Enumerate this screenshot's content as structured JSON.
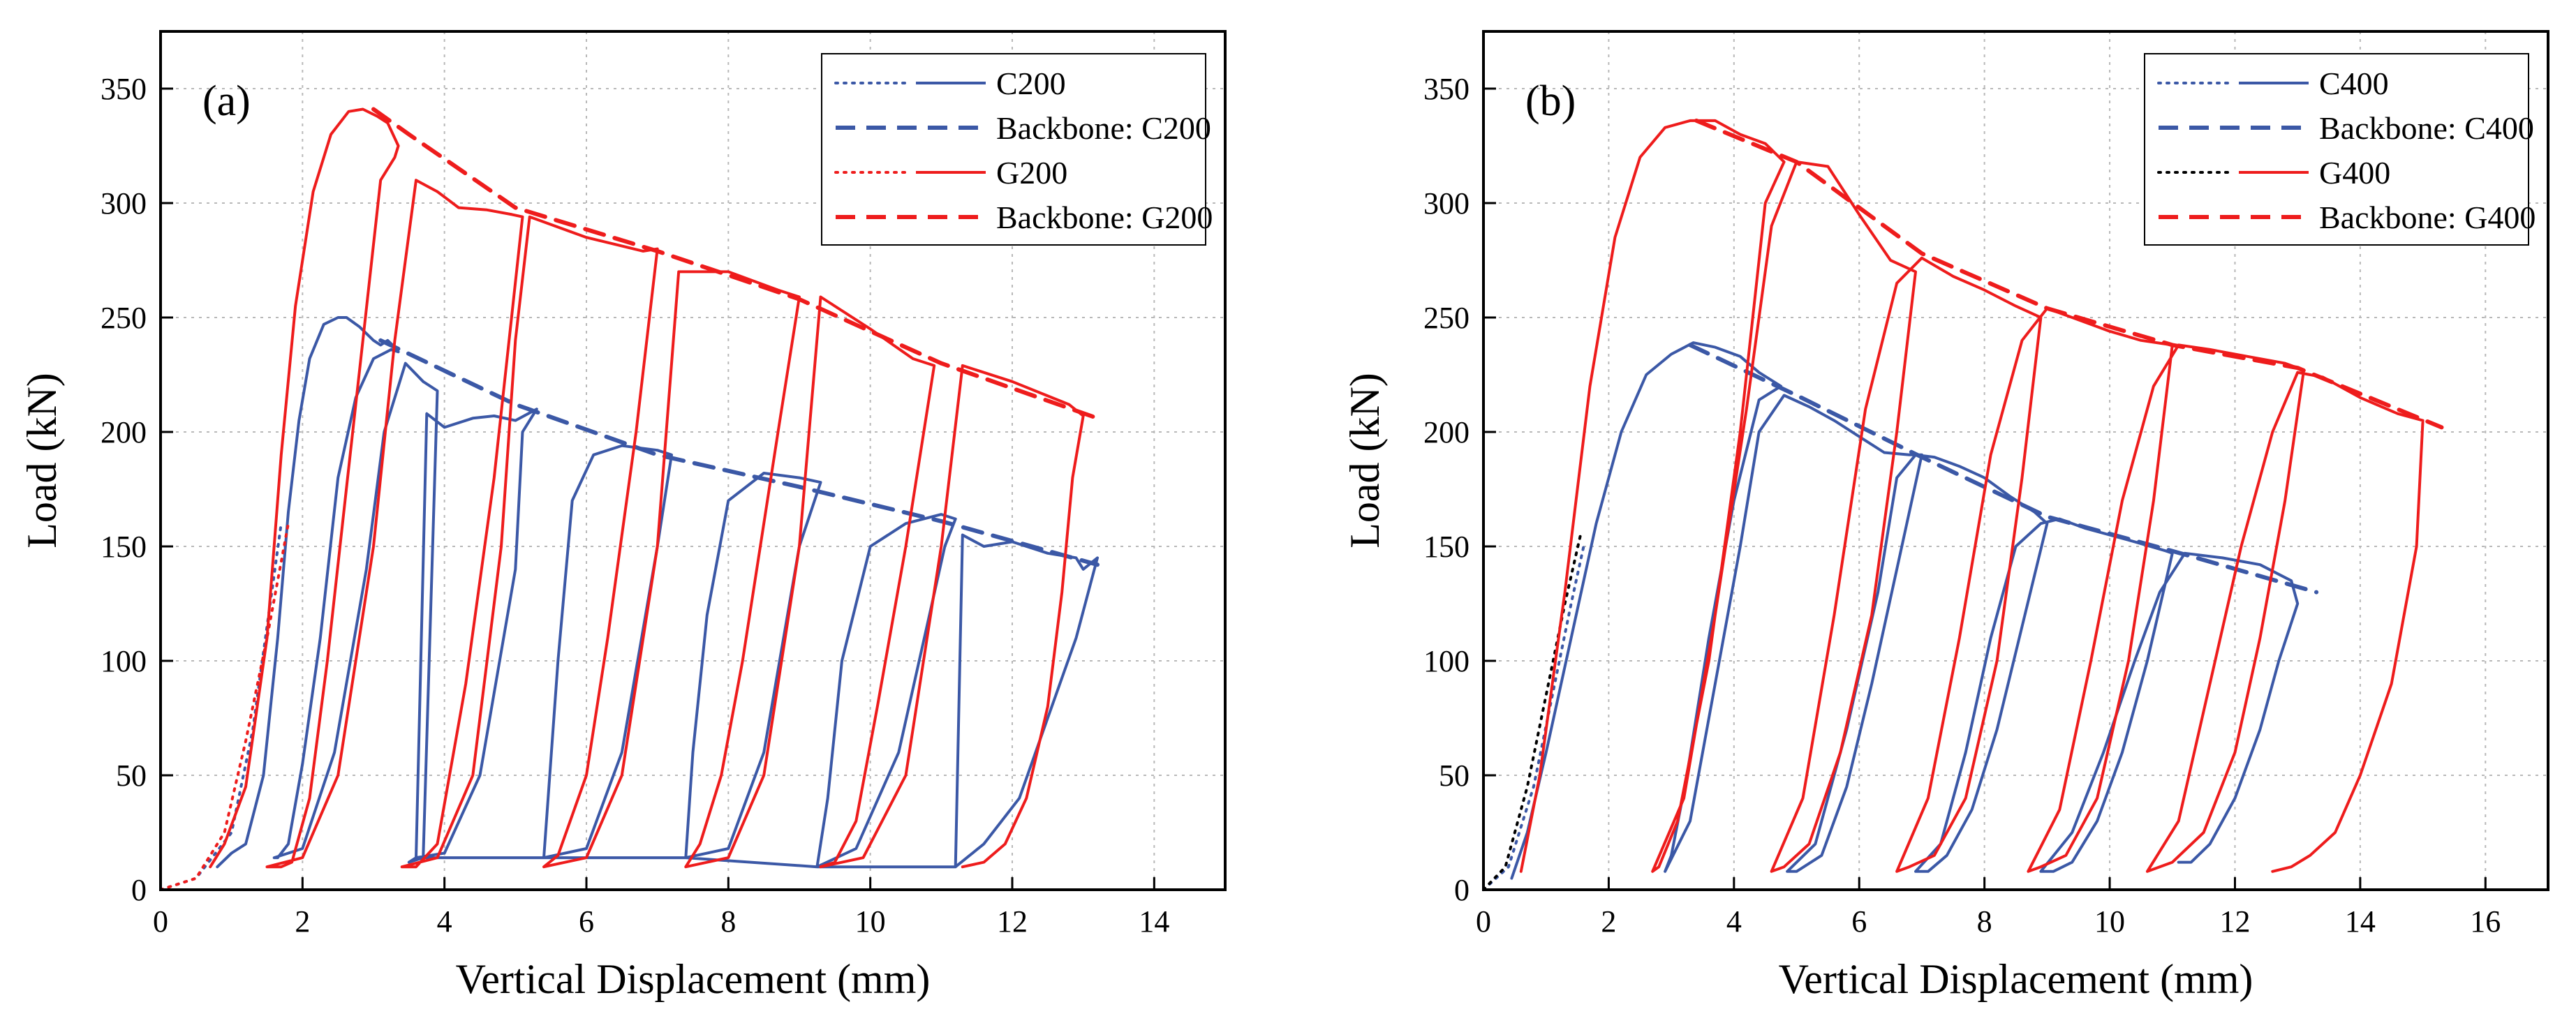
{
  "colors": {
    "blue": "#3b58a6",
    "red": "#ee1c1c",
    "black": "#000000",
    "grid": "#b8b8b8"
  },
  "chart_data": [
    {
      "type": "line",
      "panel_label": "(a)",
      "xlabel": "Vertical Displacement (mm)",
      "ylabel": "Load (kN)",
      "xlim": [
        0,
        15
      ],
      "ylim": [
        0,
        375
      ],
      "xticks": [
        0,
        2,
        4,
        6,
        8,
        10,
        12,
        14
      ],
      "yticks": [
        0,
        50,
        100,
        150,
        200,
        250,
        300,
        350
      ],
      "grid": true,
      "legend_position": "top-right",
      "legend": [
        {
          "label": "C200",
          "color": "#3b58a6",
          "sample": "dotted+solid"
        },
        {
          "label": "Backbone: C200",
          "color": "#3b58a6",
          "sample": "dashed"
        },
        {
          "label": "G200",
          "color": "#ee1c1c",
          "sample": "dotted+solid"
        },
        {
          "label": "Backbone: G200",
          "color": "#ee1c1c",
          "sample": "dashed"
        }
      ],
      "series": [
        {
          "name": "C200 monotonic",
          "color": "#3b58a6",
          "dash": "dotted",
          "x": [
            0.0,
            0.5,
            1.0,
            1.3,
            1.5,
            1.7
          ],
          "y": [
            0,
            5,
            25,
            70,
            115,
            160
          ]
        },
        {
          "name": "C200 cyclic",
          "color": "#3b58a6",
          "dash": "solid",
          "x": [
            0.8,
            1.0,
            1.2,
            1.45,
            1.65,
            1.8,
            1.95,
            2.1,
            2.3,
            2.5,
            2.62,
            2.8,
            3.0,
            3.1,
            3.2,
            3.3,
            3.35,
            3.25,
            3.0,
            2.75,
            2.5,
            2.25,
            2.0,
            1.8,
            1.65,
            1.6,
            2.0,
            2.45,
            2.9,
            3.15,
            3.45,
            3.7,
            3.9,
            3.7,
            3.5,
            3.6,
            4.0,
            4.5,
            5.0,
            5.1,
            5.3,
            5.0,
            4.7,
            4.4,
            4.0,
            3.75,
            3.6,
            5.4,
            6.0,
            6.5,
            7.0,
            7.2,
            7.0,
            6.5,
            6.1,
            5.8,
            5.6,
            5.4,
            7.4,
            8.0,
            8.5,
            9.0,
            9.3,
            9.0,
            8.5,
            8.0,
            7.7,
            7.5,
            7.4,
            9.25,
            9.8,
            10.4,
            11.05,
            11.2,
            11.0,
            10.5,
            10.0,
            9.6,
            9.4,
            9.25,
            11.2,
            11.6,
            12.1,
            12.5,
            12.9,
            13.2,
            13.0,
            12.9,
            12.5,
            12.0,
            11.6,
            11.3,
            11.2
          ],
          "y": [
            10,
            16,
            20,
            50,
            110,
            165,
            205,
            232,
            247,
            250,
            250,
            246,
            240,
            238,
            240,
            237,
            235,
            236,
            232,
            215,
            180,
            110,
            55,
            20,
            14,
            14,
            18,
            60,
            140,
            200,
            230,
            222,
            218,
            14,
            12,
            14,
            16,
            50,
            140,
            200,
            210,
            205,
            207,
            206,
            202,
            208,
            14,
            14,
            18,
            60,
            150,
            190,
            192,
            194,
            190,
            170,
            100,
            14,
            14,
            18,
            60,
            150,
            178,
            180,
            182,
            170,
            120,
            60,
            14,
            10,
            18,
            60,
            150,
            162,
            164,
            160,
            150,
            100,
            40,
            10,
            10,
            20,
            40,
            75,
            110,
            145,
            140,
            145,
            147,
            152,
            150,
            155,
            10
          ]
        },
        {
          "name": "Backbone: C200",
          "color": "#3b58a6",
          "dash": "dashed",
          "x": [
            3.1,
            5.0,
            7.0,
            9.0,
            11.0,
            13.2
          ],
          "y": [
            240,
            212,
            190,
            176,
            161,
            142
          ]
        },
        {
          "name": "G200 monotonic",
          "color": "#ee1c1c",
          "dash": "dotted",
          "x": [
            0.0,
            0.5,
            0.9,
            1.2,
            1.5,
            1.8
          ],
          "y": [
            0,
            5,
            25,
            65,
            110,
            160
          ]
        },
        {
          "name": "G200 cyclic",
          "color": "#ee1c1c",
          "dash": "solid",
          "x": [
            0.7,
            0.9,
            1.2,
            1.5,
            1.7,
            1.9,
            2.15,
            2.4,
            2.65,
            2.85,
            3.05,
            3.2,
            3.35,
            3.3,
            3.1,
            2.85,
            2.6,
            2.35,
            2.1,
            1.85,
            1.7,
            1.55,
            1.5,
            2.0,
            2.5,
            3.0,
            3.3,
            3.6,
            3.9,
            4.2,
            4.6,
            4.95,
            5.1,
            4.7,
            4.3,
            3.9,
            3.6,
            3.4,
            3.9,
            4.4,
            4.8,
            5.0,
            5.2,
            6.0,
            6.8,
            7.0,
            6.7,
            6.3,
            6.0,
            5.6,
            5.4,
            5.4,
            6.0,
            6.5,
            7.0,
            7.3,
            8.0,
            8.7,
            9.0,
            8.7,
            8.2,
            7.9,
            7.6,
            7.4,
            7.4,
            8.0,
            8.5,
            9.0,
            9.3,
            10.0,
            10.6,
            10.9,
            10.5,
            10.1,
            9.8,
            9.5,
            9.3,
            9.3,
            9.9,
            10.5,
            11.0,
            11.3,
            12.0,
            12.8,
            13.0,
            12.85,
            12.7,
            12.5,
            12.2,
            11.9,
            11.6,
            11.3
          ],
          "y": [
            10,
            20,
            45,
            110,
            190,
            255,
            305,
            330,
            340,
            341,
            338,
            335,
            325,
            320,
            310,
            240,
            170,
            100,
            40,
            12,
            10,
            10,
            10,
            14,
            50,
            150,
            240,
            310,
            305,
            298,
            297,
            295,
            294,
            180,
            90,
            20,
            10,
            10,
            14,
            50,
            150,
            240,
            294,
            285,
            279,
            280,
            200,
            110,
            50,
            15,
            10,
            10,
            14,
            50,
            150,
            270,
            270,
            262,
            259,
            200,
            100,
            50,
            20,
            10,
            10,
            14,
            50,
            150,
            259,
            245,
            232,
            229,
            150,
            80,
            30,
            12,
            10,
            10,
            14,
            50,
            150,
            229,
            222,
            212,
            207,
            180,
            130,
            80,
            40,
            20,
            12,
            10
          ]
        },
        {
          "name": "Backbone: G200",
          "color": "#ee1c1c",
          "dash": "dashed",
          "x": [
            3.0,
            3.5,
            5.0,
            7.0,
            9.0,
            11.0,
            13.2
          ],
          "y": [
            341,
            330,
            298,
            279,
            258,
            230,
            206
          ]
        }
      ]
    },
    {
      "type": "line",
      "panel_label": "(b)",
      "xlabel": "Vertical Displacement (mm)",
      "ylabel": "Load (kN)",
      "xlim": [
        0,
        17
      ],
      "ylim": [
        0,
        375
      ],
      "xticks": [
        0,
        2,
        4,
        6,
        8,
        10,
        12,
        14,
        16
      ],
      "yticks": [
        0,
        50,
        100,
        150,
        200,
        250,
        300,
        350
      ],
      "grid": true,
      "legend_position": "top-right",
      "legend": [
        {
          "label": "C400",
          "color": "#3b58a6",
          "sample": "dotted+solid"
        },
        {
          "label": "Backbone: C400",
          "color": "#3b58a6",
          "sample": "dashed"
        },
        {
          "label": "G400",
          "color": "#000000",
          "sample": "dotted+solid",
          "solid_color": "#ee1c1c"
        },
        {
          "label": "Backbone: G400",
          "color": "#ee1c1c",
          "sample": "dashed"
        }
      ],
      "series": [
        {
          "name": "C400 monotonic",
          "color": "#3b58a6",
          "dash": "dotted",
          "x": [
            0.0,
            0.4,
            0.8,
            1.1,
            1.4,
            1.6
          ],
          "y": [
            0,
            10,
            45,
            85,
            125,
            150
          ]
        },
        {
          "name": "C400 cyclic",
          "color": "#3b58a6",
          "dash": "solid",
          "x": [
            0.45,
            0.7,
            1.0,
            1.4,
            1.8,
            2.2,
            2.6,
            3.0,
            3.35,
            3.7,
            4.1,
            4.4,
            4.75,
            4.4,
            4.0,
            3.6,
            3.25,
            3.0,
            2.9,
            2.9,
            3.3,
            3.7,
            4.1,
            4.4,
            4.8,
            5.2,
            5.6,
            6.0,
            6.4,
            6.8,
            7.0,
            6.6,
            6.2,
            5.8,
            5.4,
            5.0,
            4.85,
            4.85,
            5.3,
            5.8,
            6.3,
            6.6,
            6.9,
            7.2,
            7.6,
            8.0,
            8.4,
            8.8,
            9.0,
            8.6,
            8.2,
            7.8,
            7.4,
            7.1,
            6.9,
            6.9,
            7.3,
            7.7,
            8.1,
            8.5,
            8.9,
            9.2,
            9.6,
            10.0,
            10.4,
            10.9,
            11.0,
            10.6,
            10.2,
            9.8,
            9.4,
            9.1,
            8.9,
            8.9,
            9.4,
            9.9,
            10.4,
            10.8,
            11.2,
            11.8,
            12.4,
            12.9,
            13.0,
            12.7,
            12.4,
            12.0,
            11.6,
            11.3,
            11.1
          ],
          "y": [
            5,
            25,
            60,
            110,
            160,
            200,
            225,
            234,
            239,
            237,
            233,
            226,
            220,
            214,
            170,
            110,
            50,
            15,
            8,
            8,
            30,
            90,
            150,
            200,
            216,
            211,
            205,
            198,
            191,
            190,
            190,
            140,
            90,
            45,
            15,
            8,
            8,
            8,
            20,
            70,
            130,
            180,
            190,
            189,
            185,
            180,
            172,
            165,
            160,
            115,
            70,
            35,
            15,
            8,
            8,
            8,
            20,
            60,
            110,
            150,
            160,
            162,
            158,
            155,
            152,
            148,
            147,
            100,
            60,
            30,
            12,
            8,
            8,
            8,
            25,
            60,
            100,
            130,
            147,
            145,
            142,
            135,
            125,
            100,
            70,
            40,
            20,
            12,
            12
          ]
        },
        {
          "name": "Backbone: C400",
          "color": "#3b58a6",
          "dash": "dashed",
          "x": [
            3.3,
            5.0,
            7.0,
            9.0,
            11.0,
            13.3
          ],
          "y": [
            238,
            216,
            189,
            163,
            148,
            130
          ]
        },
        {
          "name": "G400 monotonic",
          "color": "#000000",
          "dash": "dotted",
          "x": [
            0.0,
            0.35,
            0.7,
            1.0,
            1.3,
            1.55
          ],
          "y": [
            0,
            10,
            45,
            85,
            125,
            155
          ]
        },
        {
          "name": "G400 cyclic",
          "color": "#ee1c1c",
          "dash": "solid",
          "x": [
            0.6,
            0.9,
            1.3,
            1.7,
            2.1,
            2.5,
            2.9,
            3.3,
            3.7,
            4.1,
            4.5,
            4.8,
            4.5,
            4.1,
            3.6,
            3.1,
            2.8,
            2.7,
            2.7,
            3.2,
            3.7,
            4.2,
            4.6,
            5.0,
            5.5,
            6.0,
            6.5,
            6.9,
            6.6,
            6.2,
            5.7,
            5.2,
            4.8,
            4.6,
            4.6,
            5.1,
            5.6,
            6.1,
            6.6,
            7.0,
            7.5,
            8.0,
            8.5,
            8.9,
            8.6,
            8.2,
            7.7,
            7.2,
            6.8,
            6.6,
            6.6,
            7.1,
            7.6,
            8.1,
            8.6,
            9.0,
            9.5,
            10.0,
            10.5,
            11.0,
            10.7,
            10.3,
            9.8,
            9.3,
            8.9,
            8.7,
            8.7,
            9.2,
            9.7,
            10.2,
            10.7,
            11.1,
            11.6,
            12.2,
            12.8,
            13.1,
            12.8,
            12.4,
            12.0,
            11.5,
            11.0,
            10.6,
            10.6,
            11.1,
            11.6,
            12.1,
            12.6,
            13.0,
            13.4,
            14.0,
            14.6,
            15.0,
            14.9,
            14.5,
            14.0,
            13.6,
            13.2,
            12.9,
            12.6
          ],
          "y": [
            8,
            50,
            130,
            220,
            285,
            320,
            333,
            336,
            336,
            330,
            326,
            318,
            300,
            200,
            100,
            30,
            10,
            8,
            8,
            40,
            120,
            210,
            290,
            318,
            316,
            295,
            275,
            270,
            200,
            120,
            60,
            20,
            10,
            8,
            8,
            40,
            120,
            210,
            265,
            276,
            268,
            262,
            255,
            250,
            180,
            100,
            40,
            15,
            10,
            8,
            8,
            40,
            110,
            190,
            240,
            254,
            249,
            244,
            240,
            238,
            170,
            100,
            40,
            15,
            10,
            8,
            8,
            35,
            100,
            170,
            220,
            238,
            236,
            233,
            230,
            227,
            170,
            110,
            60,
            25,
            12,
            8,
            8,
            30,
            90,
            150,
            200,
            226,
            224,
            215,
            208,
            205,
            150,
            90,
            50,
            25,
            15,
            10,
            8
          ]
        },
        {
          "name": "Backbone: G400",
          "color": "#ee1c1c",
          "dash": "dashed",
          "x": [
            3.4,
            5.0,
            7.0,
            9.0,
            11.0,
            13.0,
            15.3
          ],
          "y": [
            336,
            318,
            278,
            254,
            238,
            228,
            202
          ]
        }
      ]
    }
  ]
}
